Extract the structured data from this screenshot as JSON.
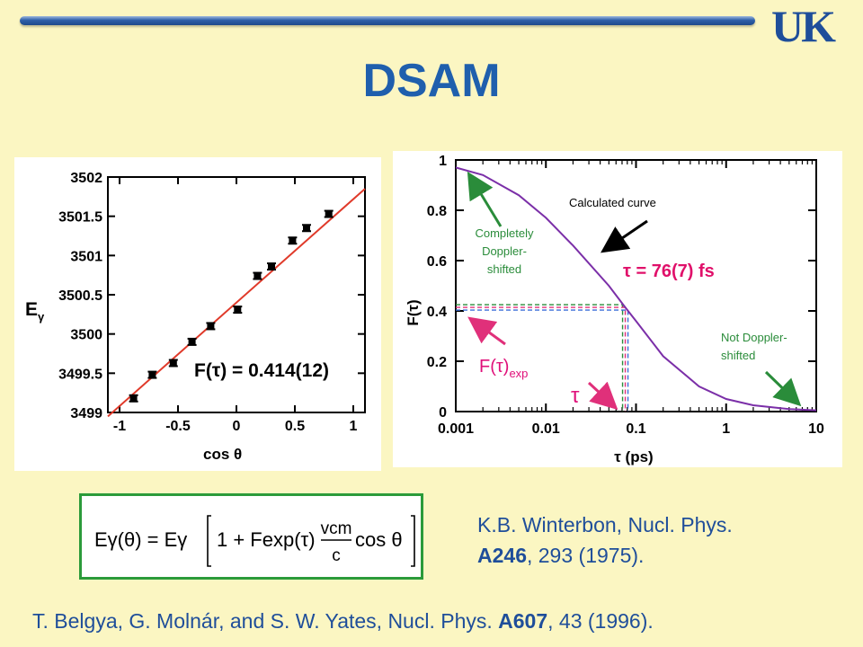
{
  "slide": {
    "title": "DSAM",
    "logo_text": "UK",
    "colors": {
      "title": "#1f5fad",
      "bar": "#2e5fa8",
      "background": "#fbf6c2",
      "equation_border": "#2b9b3a"
    }
  },
  "chart_data": [
    {
      "type": "scatter",
      "ylabel": "Eγ",
      "xlabel": "cos θ",
      "xlim": [
        -1.1,
        1.1
      ],
      "ylim": [
        3499,
        3502
      ],
      "xticks": [
        "-1",
        "-0.5",
        "0",
        "0.5",
        "1"
      ],
      "yticks": [
        "3499",
        "3499.5",
        "3500",
        "3500.5",
        "3501",
        "3501.5",
        "3502"
      ],
      "x": [
        -0.88,
        -0.72,
        -0.54,
        -0.38,
        -0.22,
        0.01,
        0.18,
        0.3,
        0.48,
        0.6,
        0.79
      ],
      "y": [
        3499.18,
        3499.48,
        3499.63,
        3499.9,
        3500.1,
        3500.31,
        3500.74,
        3500.86,
        3501.19,
        3501.35,
        3501.53
      ],
      "yerr": 0.04,
      "fit_line": {
        "x": [
          -1.1,
          1.1
        ],
        "y": [
          3498.95,
          3501.85
        ],
        "color": "#e03a2a"
      },
      "annotation": "F(τ) = 0.414(12)"
    },
    {
      "type": "line",
      "xscale": "log",
      "xlabel": "τ (ps)",
      "ylabel": "F(τ)",
      "xlim": [
        0.001,
        10
      ],
      "ylim": [
        0,
        1
      ],
      "xticks": [
        "0.001",
        "0.01",
        "0.1",
        "1",
        "10"
      ],
      "yticks": [
        "0",
        "0.2",
        "0.4",
        "0.6",
        "0.8",
        "1"
      ],
      "curve": {
        "x": [
          0.001,
          0.002,
          0.005,
          0.01,
          0.02,
          0.05,
          0.076,
          0.1,
          0.2,
          0.5,
          1,
          2,
          5,
          10
        ],
        "y": [
          0.97,
          0.94,
          0.86,
          0.77,
          0.66,
          0.5,
          0.414,
          0.36,
          0.22,
          0.1,
          0.05,
          0.025,
          0.01,
          0.005
        ],
        "color": "#7b2fa8"
      },
      "tau_value": 0.076,
      "f_exp": 0.414,
      "labels": {
        "calculated": "Calculated curve",
        "complete": [
          "Completely",
          "Doppler-",
          "shifted"
        ],
        "not_shifted": [
          "Not Doppler-",
          "shifted"
        ],
        "tau_result": "τ = 76(7)  fs",
        "f_exp_label": "F(τ)",
        "f_exp_sub": "exp",
        "tau_symbol": "τ"
      }
    }
  ],
  "equation": {
    "lhs": "Eγ(θ) = Eγ",
    "bracket": "1 + Fexp(τ)",
    "numerator": "vcm",
    "denominator": "c",
    "tail": "cos θ"
  },
  "references": {
    "ref1_line1": "K.B. Winterbon, Nucl. Phys.",
    "ref1_bold": "A246",
    "ref1_rest": ", 293 (1975).",
    "ref2_main": "T. Belgya, G. Molnár, and S. W. Yates, Nucl. Phys. ",
    "ref2_bold": "A607",
    "ref2_rest": ", 43 (1996)."
  }
}
